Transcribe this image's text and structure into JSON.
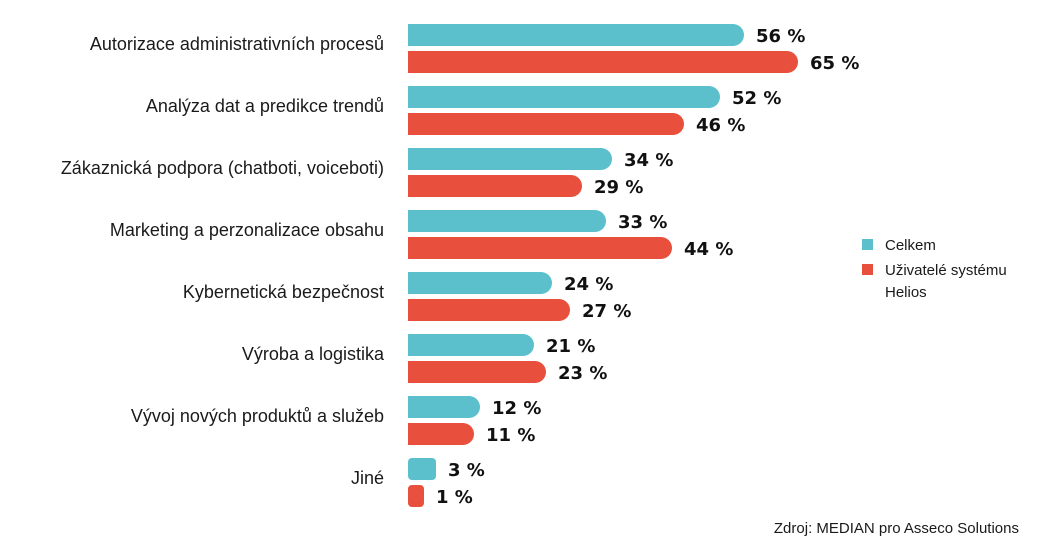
{
  "chart_data": {
    "type": "bar",
    "orientation": "horizontal",
    "categories": [
      "Autorizace administrativních procesů",
      "Analýza dat a predikce trendů",
      "Zákaznická podpora (chatboti, voiceboti)",
      "Marketing a perzonalizace obsahu",
      "Kybernetická bezpečnost",
      "Výroba a logistika",
      "Vývoj nových produktů a služeb",
      "Jiné"
    ],
    "series": [
      {
        "name": "Celkem",
        "color": "#5bc0cc",
        "values": [
          56,
          52,
          34,
          33,
          24,
          21,
          12,
          3
        ]
      },
      {
        "name": "Uživatelé systému Helios",
        "color": "#e84f3d",
        "values": [
          65,
          46,
          29,
          44,
          27,
          23,
          11,
          1
        ]
      }
    ],
    "value_suffix": " %",
    "xlim": [
      0,
      100
    ],
    "legend_position": "right",
    "grid": false
  },
  "source": "Zdroj: MEDIAN pro Asseco Solutions",
  "legend_lines": [
    [
      "Celkem"
    ],
    [
      "Uživatelé systému",
      "Helios"
    ]
  ]
}
